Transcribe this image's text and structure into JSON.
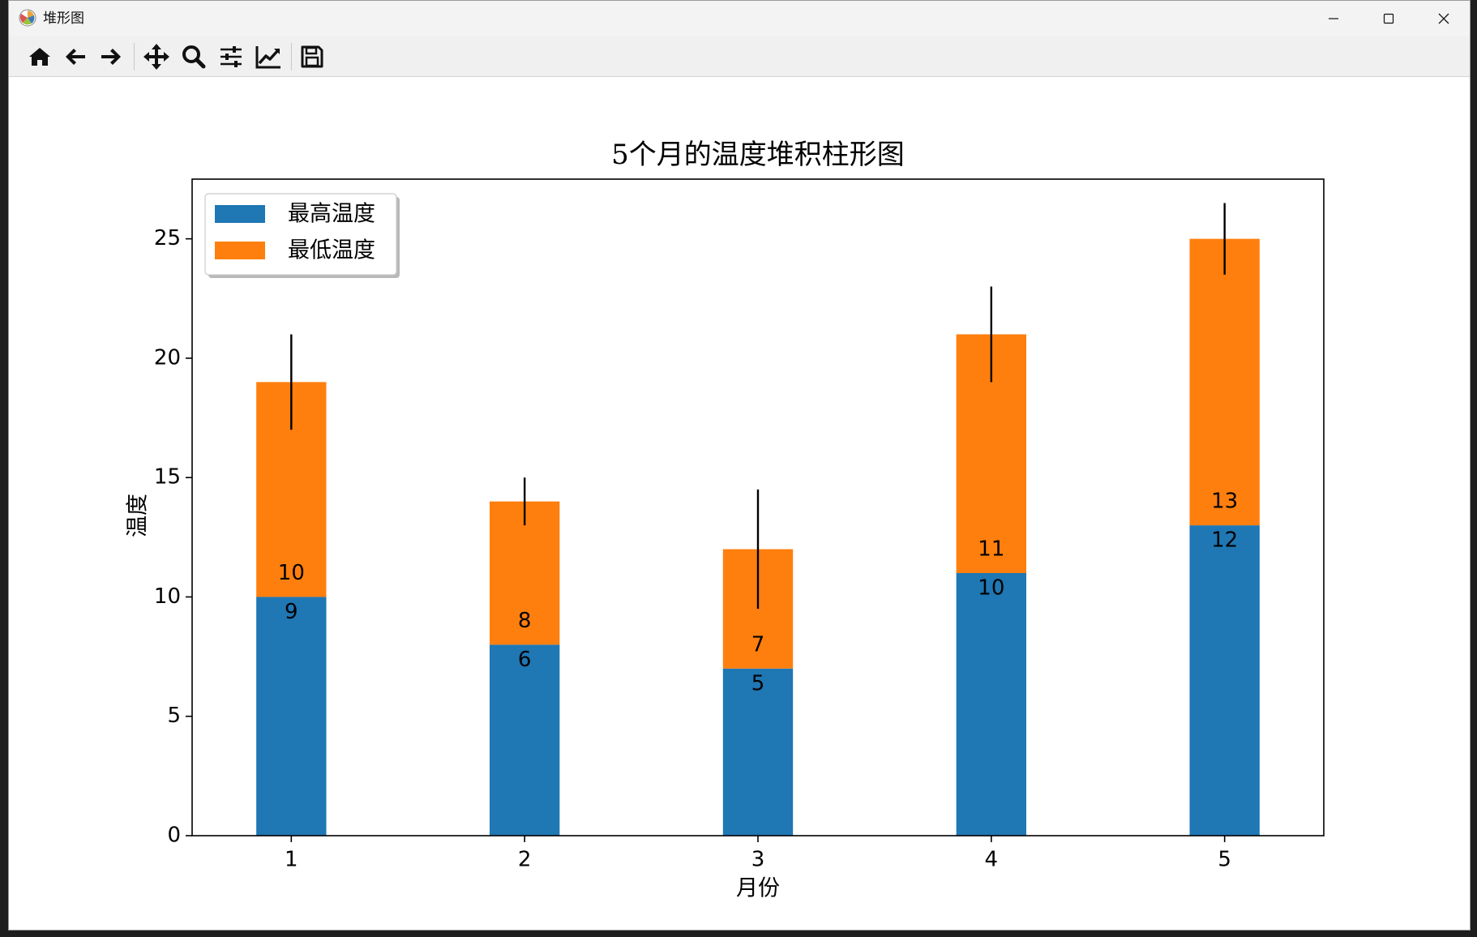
{
  "window": {
    "title": "堆形图"
  },
  "toolbar": {
    "tools": [
      {
        "name": "home-button",
        "icon": "home-icon"
      },
      {
        "name": "back-button",
        "icon": "arrow-left-icon"
      },
      {
        "name": "forward-button",
        "icon": "arrow-right-icon"
      },
      {
        "name": "pan-button",
        "icon": "move-icon"
      },
      {
        "name": "zoom-button",
        "icon": "magnifier-icon"
      },
      {
        "name": "subplots-button",
        "icon": "sliders-icon"
      },
      {
        "name": "edit-axes-button",
        "icon": "line-chart-icon"
      },
      {
        "name": "save-button",
        "icon": "floppy-disk-icon"
      }
    ]
  },
  "chart_data": {
    "type": "bar",
    "stacked": true,
    "title": "5个月的温度堆积柱形图",
    "xlabel": "月份",
    "ylabel": "温度",
    "categories": [
      "1",
      "2",
      "3",
      "4",
      "5"
    ],
    "yticks": [
      "0",
      "5",
      "10",
      "15",
      "20",
      "25"
    ],
    "ylim": [
      0,
      27.5
    ],
    "xlim": [
      0.575,
      5.425
    ],
    "legend_position": "upper-left",
    "grid": false,
    "series": [
      {
        "name": "最高温度",
        "color": "#1f77b4",
        "values": [
          10,
          8,
          7,
          11,
          13
        ],
        "value_labels": [
          "10",
          "8",
          "7",
          "11",
          "13"
        ]
      },
      {
        "name": "最低温度",
        "color": "#ff7f0e",
        "values": [
          9,
          6,
          5,
          10,
          12
        ],
        "value_labels": [
          "9",
          "6",
          "5",
          "10",
          "12"
        ],
        "error": [
          2,
          1,
          2.5,
          2,
          1.5
        ]
      }
    ]
  }
}
